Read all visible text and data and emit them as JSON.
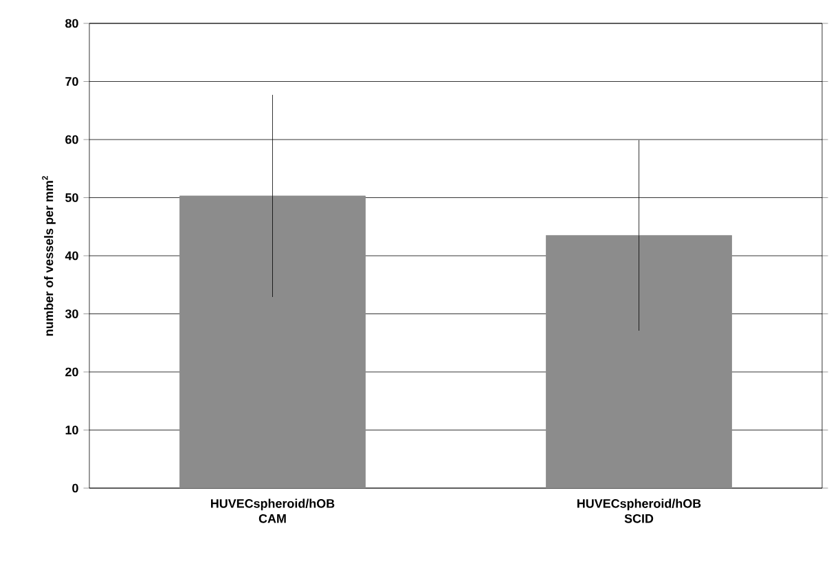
{
  "chart_data": {
    "type": "bar",
    "ylabel": "number of vessels per mm$^{2}$",
    "categories": [
      "HUVECspheroid/hOB CAM",
      "HUVECspheroid/hOB SCID"
    ],
    "values": [
      50.3,
      43.5
    ],
    "errors": [
      17.4,
      16.4
    ],
    "color": "#8c8c8c",
    "ylim": [
      0,
      80
    ],
    "yticks": [
      0,
      10,
      20,
      30,
      40,
      50,
      60,
      70,
      80
    ],
    "grid": "y"
  }
}
